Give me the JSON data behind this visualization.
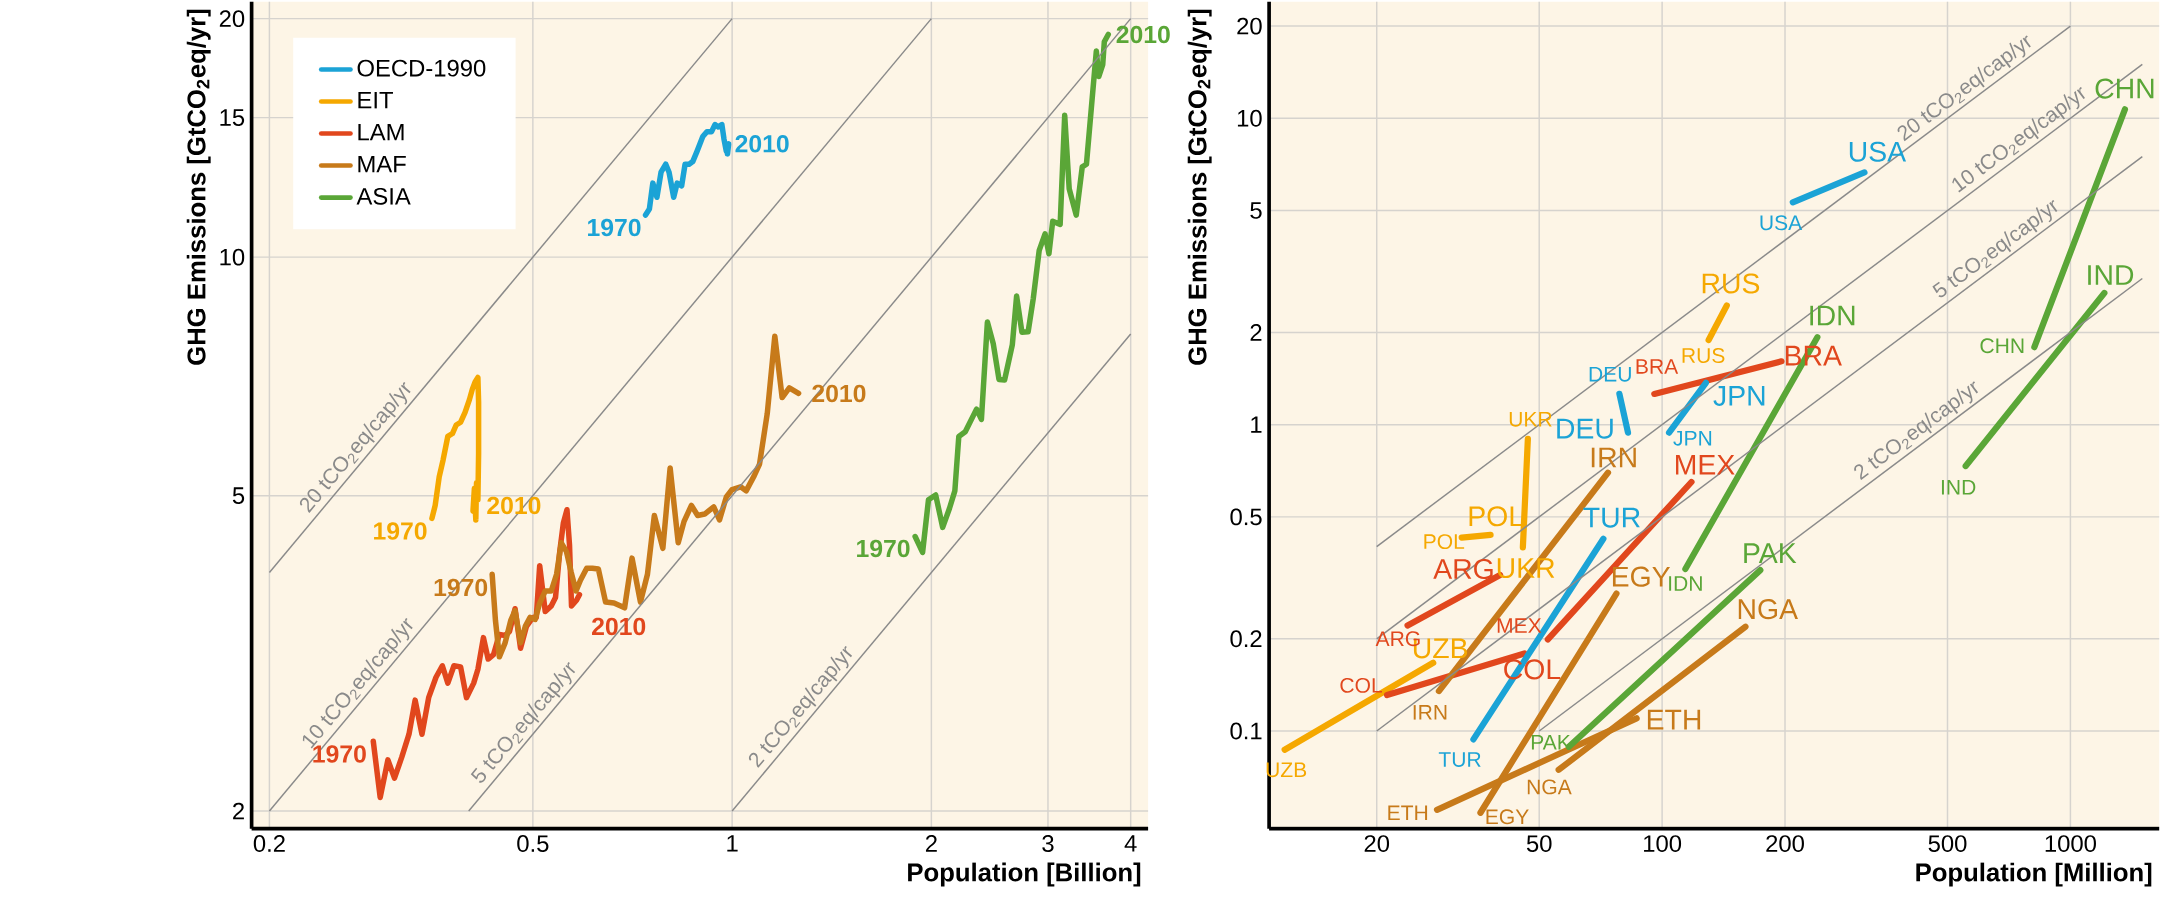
{
  "chart_data": [
    {
      "type": "line",
      "xlabel": "Population [Billion]",
      "ylabel": "GHG Emissions [GtCO$_{2}$eq/yr]",
      "log": "xy",
      "grid": true,
      "legend": "top left",
      "xlim": [
        0.188,
        4.25
      ],
      "ylim": [
        1.9,
        21
      ],
      "xticks": [
        0.2,
        0.5,
        1,
        2,
        3,
        4
      ],
      "yticks": [
        2,
        5,
        10,
        15,
        20
      ],
      "series": [
        {
          "name": "OECD-1990",
          "color": "#1ba3d6",
          "x": [
            0.74,
            0.75,
            0.759,
            0.77,
            0.781,
            0.794,
            0.803,
            0.816,
            0.826,
            0.839,
            0.849,
            0.861,
            0.872,
            0.885,
            0.903,
            0.916,
            0.931,
            0.942,
            0.953,
            0.965,
            0.972,
            0.98,
            0.988,
            0.984
          ],
          "values": [
            11.3,
            11.5,
            12.4,
            11.9,
            12.8,
            13.1,
            12.8,
            11.9,
            12.4,
            12.3,
            13.1,
            13.1,
            13.2,
            13.6,
            14.2,
            14.4,
            14.4,
            14.7,
            14.6,
            14.7,
            14.1,
            13.6,
            13.9,
            13.5
          ]
        },
        {
          "name": "EIT",
          "color": "#f5a800",
          "x": [
            0.352,
            0.356,
            0.361,
            0.366,
            0.372,
            0.378,
            0.383,
            0.389,
            0.395,
            0.401,
            0.405,
            0.409,
            0.413,
            0.414,
            0.414,
            0.413,
            0.411,
            0.41,
            0.408,
            0.406
          ],
          "values": [
            4.68,
            4.86,
            5.28,
            5.55,
            5.94,
            5.99,
            6.14,
            6.19,
            6.37,
            6.61,
            6.81,
            6.96,
            7.05,
            6.56,
            5.65,
            4.94,
            5.19,
            4.66,
            5.11,
            4.78
          ]
        },
        {
          "name": "LAM",
          "color": "#e1471d",
          "x": [
            0.287,
            0.294,
            0.302,
            0.309,
            0.317,
            0.325,
            0.332,
            0.34,
            0.348,
            0.357,
            0.365,
            0.372,
            0.38,
            0.389,
            0.397,
            0.407,
            0.413,
            0.421,
            0.428,
            0.436,
            0.445,
            0.454,
            0.461,
            0.47,
            0.479,
            0.489,
            0.5,
            0.506,
            0.512,
            0.522,
            0.533,
            0.541,
            0.549,
            0.556,
            0.563,
            0.568,
            0.572,
            0.582,
            0.588
          ],
          "values": [
            2.45,
            2.08,
            2.32,
            2.2,
            2.34,
            2.5,
            2.76,
            2.5,
            2.78,
            2.95,
            3.05,
            2.9,
            3.05,
            3.04,
            2.78,
            2.9,
            3.02,
            3.31,
            3.11,
            3.15,
            3.34,
            3.33,
            3.37,
            3.6,
            3.21,
            3.42,
            3.51,
            3.51,
            4.08,
            3.57,
            3.63,
            3.72,
            4.25,
            4.62,
            4.8,
            4.33,
            3.63,
            3.69,
            3.75
          ]
        },
        {
          "name": "MAF",
          "color": "#c77a1a",
          "x": [
            0.434,
            0.439,
            0.445,
            0.454,
            0.463,
            0.47,
            0.479,
            0.487,
            0.495,
            0.504,
            0.512,
            0.522,
            0.533,
            0.543,
            0.552,
            0.562,
            0.571,
            0.581,
            0.59,
            0.603,
            0.615,
            0.628,
            0.644,
            0.663,
            0.688,
            0.706,
            0.727,
            0.745,
            0.763,
            0.786,
            0.806,
            0.829,
            0.846,
            0.868,
            0.887,
            0.909,
            0.938,
            0.957,
            0.98,
            1.0,
            1.03,
            1.05,
            1.08,
            1.1,
            1.13,
            1.16,
            1.19,
            1.22,
            1.26
          ],
          "values": [
            3.98,
            3.48,
            3.13,
            3.26,
            3.48,
            3.58,
            3.26,
            3.42,
            3.51,
            3.49,
            3.66,
            3.79,
            3.79,
            3.98,
            4.36,
            4.25,
            4.01,
            3.79,
            3.91,
            4.05,
            4.05,
            4.04,
            3.67,
            3.66,
            3.61,
            4.17,
            3.67,
            3.98,
            4.72,
            4.29,
            5.42,
            4.36,
            4.64,
            4.86,
            4.72,
            4.74,
            4.84,
            4.66,
            4.98,
            5.09,
            5.13,
            5.07,
            5.3,
            5.48,
            6.35,
            7.95,
            6.65,
            6.84,
            6.73
          ]
        },
        {
          "name": "ASIA",
          "color": "#5aa637",
          "x": [
            1.89,
            1.94,
            1.98,
            2.03,
            2.08,
            2.13,
            2.17,
            2.2,
            2.25,
            2.34,
            2.38,
            2.43,
            2.48,
            2.53,
            2.58,
            2.65,
            2.69,
            2.74,
            2.8,
            2.85,
            2.91,
            2.97,
            3.01,
            3.05,
            3.13,
            3.18,
            3.23,
            3.31,
            3.38,
            3.43,
            3.5,
            3.55,
            3.58,
            3.63,
            3.65,
            3.7
          ],
          "values": [
            4.44,
            4.24,
            4.94,
            5.01,
            4.56,
            4.82,
            5.07,
            5.94,
            6.02,
            6.43,
            6.24,
            8.28,
            7.78,
            7.01,
            7.0,
            7.75,
            8.93,
            8.04,
            8.05,
            8.86,
            10.2,
            10.7,
            10.1,
            11.1,
            11.0,
            15.1,
            12.2,
            11.3,
            13.0,
            13.1,
            15.9,
            18.2,
            16.9,
            17.5,
            18.7,
            19.1
          ]
        },
        {
          "type": "line",
          "name": "20 tCO$_{2}$eq/cap/yr",
          "color": "#8a8a8a",
          "x": [
            0.2,
            1
          ],
          "values": [
            4,
            20
          ]
        },
        {
          "type": "line",
          "name": "10 tCO$_{2}$eq/cap/yr",
          "color": "#8a8a8a",
          "x": [
            0.2,
            2
          ],
          "values": [
            2,
            20
          ]
        },
        {
          "type": "line",
          "name": "5 tCO$_{2}$eq/cap/yr",
          "color": "#8a8a8a",
          "x": [
            0.4,
            4
          ],
          "values": [
            2,
            20
          ]
        },
        {
          "type": "line",
          "name": "2 tCO$_{2}$eq/cap/yr",
          "color": "#8a8a8a",
          "x": [
            1,
            4
          ],
          "values": [
            2,
            8
          ]
        }
      ],
      "annotations": [
        {
          "text": "1970",
          "x": 0.74,
          "y": 11.3
        },
        {
          "text": "2010",
          "x": 0.984,
          "y": 13.5
        },
        {
          "text": "1970",
          "x": 0.352,
          "y": 4.68
        },
        {
          "text": "2010",
          "x": 0.406,
          "y": 4.78
        },
        {
          "text": "1970",
          "x": 0.287,
          "y": 2.45
        },
        {
          "text": "2010",
          "x": 0.588,
          "y": 3.75
        },
        {
          "text": "1970",
          "x": 0.434,
          "y": 3.98
        },
        {
          "text": "2010",
          "x": 1.26,
          "y": 6.73
        },
        {
          "text": "1970",
          "x": 1.89,
          "y": 4.44
        },
        {
          "text": "2010",
          "x": 3.7,
          "y": 19.1
        }
      ]
    },
    {
      "type": "line",
      "xlabel": "Population [Million]",
      "ylabel": "GHG Emissions [GtCO$_{2}$eq/yr]",
      "log": "xy",
      "grid": true,
      "xlim": [
        10.9,
        1650
      ],
      "ylim": [
        0.048,
        24
      ],
      "xticks": [
        20,
        50,
        100,
        200,
        500,
        1000
      ],
      "yticks": [
        0.1,
        0.2,
        0.5,
        1,
        2,
        5,
        10,
        20
      ],
      "series": [
        {
          "color": "#f5a800",
          "x": [
            11.9,
            27.5
          ],
          "values": [
            0.0869,
            0.167
          ]
        },
        {
          "color": "#e1471d",
          "x": [
            21.2,
            46.0
          ],
          "values": [
            0.131,
            0.179
          ]
        },
        {
          "color": "#e1471d",
          "x": [
            23.8,
            40.1
          ],
          "values": [
            0.221,
            0.323
          ]
        },
        {
          "color": "#f5a800",
          "x": [
            32.3,
            38.0
          ],
          "values": [
            0.428,
            0.437
          ]
        },
        {
          "color": "#f5a800",
          "x": [
            46.9,
            45.6
          ],
          "values": [
            0.898,
            0.398
          ]
        },
        {
          "color": "#1ba3d6",
          "x": [
            78.6,
            82.5
          ],
          "values": [
            1.26,
            0.942
          ]
        },
        {
          "color": "#c77a1a",
          "x": [
            28.4,
            73.7
          ],
          "values": [
            0.135,
            0.697
          ]
        },
        {
          "color": "#1ba3d6",
          "x": [
            34.5,
            71.8
          ],
          "values": [
            0.0939,
            0.424
          ]
        },
        {
          "color": "#e1471d",
          "x": [
            52.5,
            118
          ],
          "values": [
            0.199,
            0.65
          ]
        },
        {
          "color": "#c77a1a",
          "x": [
            35.9,
            77.3
          ],
          "values": [
            0.0541,
            0.281
          ]
        },
        {
          "color": "#c77a1a",
          "x": [
            28.1,
            86.6
          ],
          "values": [
            0.0553,
            0.11
          ]
        },
        {
          "color": "#c77a1a",
          "x": [
            55.8,
            160
          ],
          "values": [
            0.0747,
            0.219
          ]
        },
        {
          "color": "#5aa637",
          "x": [
            59.1,
            174
          ],
          "values": [
            0.0888,
            0.335
          ]
        },
        {
          "color": "#e1471d",
          "x": [
            95.7,
            196
          ],
          "values": [
            1.26,
            1.61
          ]
        },
        {
          "color": "#1ba3d6",
          "x": [
            104,
            128
          ],
          "values": [
            0.942,
            1.37
          ]
        },
        {
          "color": "#f5a800",
          "x": [
            130,
            144
          ],
          "values": [
            1.89,
            2.45
          ]
        },
        {
          "color": "#1ba3d6",
          "x": [
            209,
            313
          ],
          "values": [
            5.32,
            6.66
          ]
        },
        {
          "color": "#5aa637",
          "x": [
            114,
            240
          ],
          "values": [
            0.338,
            1.93
          ]
        },
        {
          "color": "#5aa637",
          "x": [
            816,
            1360
          ],
          "values": [
            1.79,
            10.7
          ]
        },
        {
          "color": "#5aa637",
          "x": [
            554,
            1211
          ],
          "values": [
            0.733,
            2.69
          ]
        },
        {
          "type": "line",
          "name": "20 tCO$_{2}$eq/cap/yr",
          "color": "#8a8a8a",
          "x": [
            20,
            1000
          ],
          "values": [
            0.4,
            20
          ]
        },
        {
          "type": "line",
          "name": "10 tCO$_{2}$eq/cap/yr",
          "color": "#8a8a8a",
          "x": [
            20,
            1500
          ],
          "values": [
            0.2,
            15
          ]
        },
        {
          "type": "line",
          "name": "5 tCO$_{2}$eq/cap/yr",
          "color": "#8a8a8a",
          "x": [
            20,
            1500
          ],
          "values": [
            0.1,
            7.5
          ]
        },
        {
          "type": "line",
          "name": "2 tCO$_{2}$eq/cap/yr",
          "color": "#8a8a8a",
          "x": [
            50,
            1500
          ],
          "values": [
            0.1,
            3
          ]
        }
      ],
      "annotations": [
        {
          "text": "UZB",
          "x": 11.9,
          "y": 0.0869
        },
        {
          "text": "UZB",
          "x": 27.5,
          "y": 0.167
        },
        {
          "text": "COL",
          "x": 21.2,
          "y": 0.131
        },
        {
          "text": "COL",
          "x": 46.0,
          "y": 0.179
        },
        {
          "text": "ARG",
          "x": 23.8,
          "y": 0.221
        },
        {
          "text": "ARG",
          "x": 40.1,
          "y": 0.323
        },
        {
          "text": "POL",
          "x": 32.3,
          "y": 0.428
        },
        {
          "text": "POL",
          "x": 38.0,
          "y": 0.437
        },
        {
          "text": "UKR",
          "x": 46.9,
          "y": 0.898
        },
        {
          "text": "UKR",
          "x": 45.6,
          "y": 0.398
        },
        {
          "text": "DEU",
          "x": 78.6,
          "y": 1.26
        },
        {
          "text": "DEU",
          "x": 82.5,
          "y": 0.942
        },
        {
          "text": "IRN",
          "x": 28.4,
          "y": 0.135
        },
        {
          "text": "IRN",
          "x": 73.7,
          "y": 0.697
        },
        {
          "text": "TUR",
          "x": 34.5,
          "y": 0.0939
        },
        {
          "text": "TUR",
          "x": 71.8,
          "y": 0.424
        },
        {
          "text": "MEX",
          "x": 52.5,
          "y": 0.199
        },
        {
          "text": "MEX",
          "x": 118,
          "y": 0.65
        },
        {
          "text": "EGY",
          "x": 35.9,
          "y": 0.0541
        },
        {
          "text": "EGY",
          "x": 77.3,
          "y": 0.281
        },
        {
          "text": "ETH",
          "x": 28.1,
          "y": 0.0553
        },
        {
          "text": "ETH",
          "x": 86.6,
          "y": 0.11
        },
        {
          "text": "NGA",
          "x": 55.8,
          "y": 0.0747
        },
        {
          "text": "NGA",
          "x": 160,
          "y": 0.219
        },
        {
          "text": "PAK",
          "x": 59.1,
          "y": 0.0888
        },
        {
          "text": "PAK",
          "x": 174,
          "y": 0.335
        },
        {
          "text": "BRA",
          "x": 95.7,
          "y": 1.26
        },
        {
          "text": "BRA",
          "x": 196,
          "y": 1.61
        },
        {
          "text": "JPN",
          "x": 104,
          "y": 0.942
        },
        {
          "text": "JPN",
          "x": 128,
          "y": 1.37
        },
        {
          "text": "RUS",
          "x": 130,
          "y": 1.89
        },
        {
          "text": "RUS",
          "x": 144,
          "y": 2.45
        },
        {
          "text": "USA",
          "x": 209,
          "y": 5.32
        },
        {
          "text": "USA",
          "x": 313,
          "y": 6.66
        },
        {
          "text": "IDN",
          "x": 114,
          "y": 0.338
        },
        {
          "text": "IDN",
          "x": 240,
          "y": 1.93
        },
        {
          "text": "CHN",
          "x": 816,
          "y": 1.79
        },
        {
          "text": "CHN",
          "x": 1360,
          "y": 10.7
        },
        {
          "text": "IND",
          "x": 554,
          "y": 0.733
        },
        {
          "text": "IND",
          "x": 1211,
          "y": 2.69
        }
      ]
    }
  ]
}
